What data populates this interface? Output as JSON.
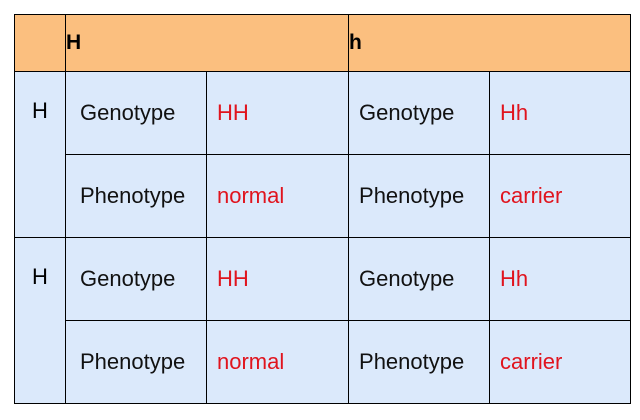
{
  "header": {
    "corner": "",
    "col1": "H",
    "col2": "h"
  },
  "rows": [
    {
      "allele": "H",
      "cells": [
        {
          "label": "Genotype",
          "value": "HH",
          "label2": "Genotype",
          "value2": "Hh"
        },
        {
          "label": "Phenotype",
          "value": "normal",
          "label2": "Phenotype",
          "value2": "carrier"
        }
      ]
    },
    {
      "allele": "H",
      "cells": [
        {
          "label": "Genotype",
          "value": "HH",
          "label2": "Genotype",
          "value2": "Hh"
        },
        {
          "label": "Phenotype",
          "value": "normal",
          "label2": "Phenotype",
          "value2": "carrier"
        }
      ]
    }
  ],
  "colors": {
    "header_bg": "#fbbf7f",
    "body_bg": "#dbe9fb",
    "value_text": "#e0141e"
  }
}
